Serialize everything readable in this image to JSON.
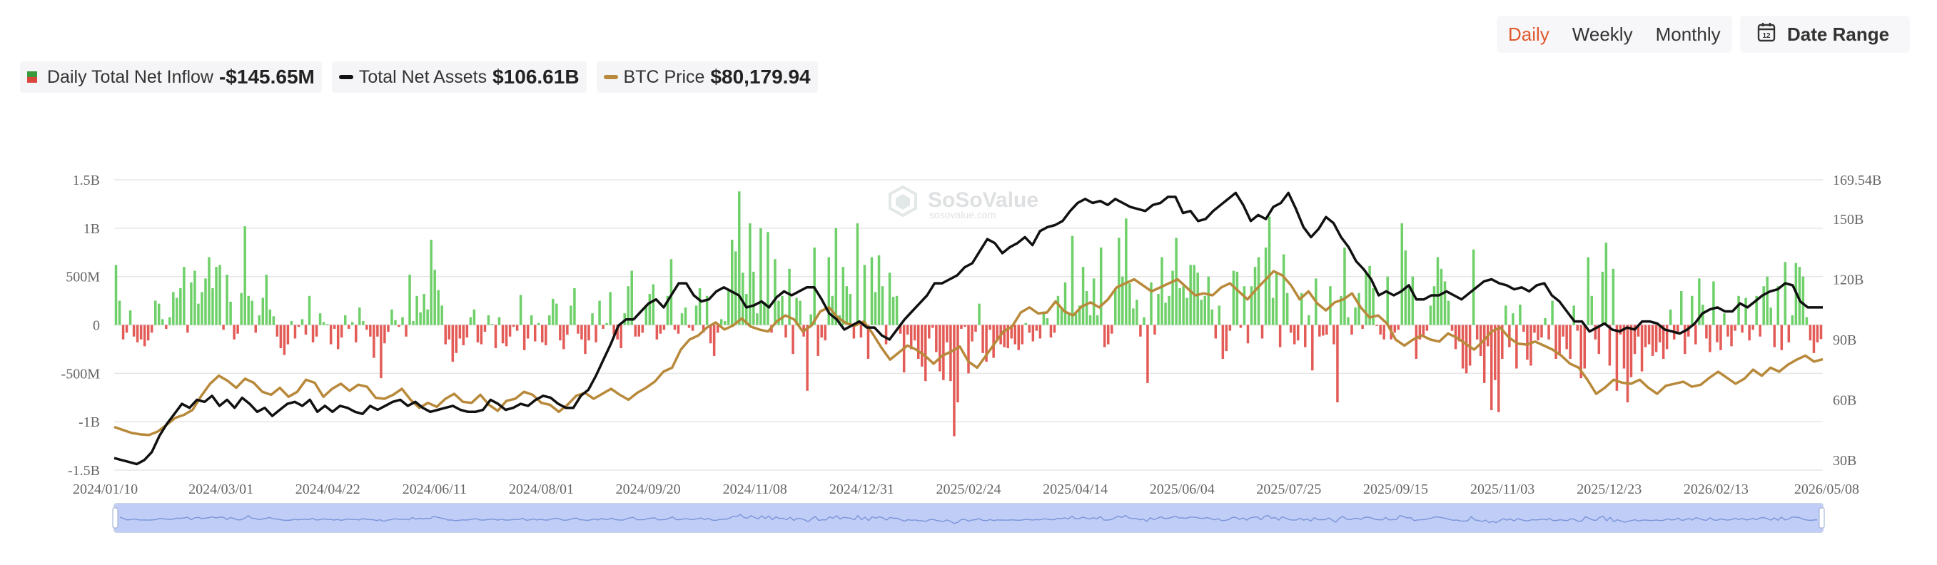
{
  "toolbar": {
    "periods": [
      "Daily",
      "Weekly",
      "Monthly"
    ],
    "active_period": "Daily",
    "date_range_label": "Date Range",
    "date_range_icon": "calendar-icon",
    "calendar_day": "12"
  },
  "legend": {
    "inflow": {
      "label": "Daily Total Net Inflow",
      "value": "-$145.65M"
    },
    "assets": {
      "label": "Total Net Assets",
      "value": "$106.61B"
    },
    "price": {
      "label": "BTC Price",
      "value": "$80,179.94"
    }
  },
  "watermark": {
    "brand": "SoSoValue",
    "url": "sosovalue.com"
  },
  "colors": {
    "inflow_positive": "#6fd06a",
    "inflow_negative": "#e35b57",
    "net_assets": "#111111",
    "btc_price": "#b8893a",
    "active_tab": "#e0582e",
    "navigator_fill": "#bfcdf7"
  },
  "chart_data": {
    "type": "bar",
    "x_ticks": [
      "2024/01/10",
      "2024/03/01",
      "2024/04/22",
      "2024/06/11",
      "2024/08/01",
      "2024/09/20",
      "2024/11/08",
      "2024/12/31",
      "2025/02/24",
      "2025/04/14",
      "2025/06/04",
      "2025/07/25",
      "2025/09/15",
      "2025/11/03",
      "2025/12/23",
      "2026/02/13",
      "2026/05/08"
    ],
    "y_left_ticks": [
      "1.5B",
      "1B",
      "500M",
      "0",
      "-500M",
      "-1B",
      "-1.5B"
    ],
    "y_left_range": [
      -1500000000,
      1500000000
    ],
    "y_right_ticks": [
      "169.54B",
      "150B",
      "120B",
      "90B",
      "60B",
      "30B"
    ],
    "y_right_range": [
      25,
      169.54
    ],
    "grid": true,
    "series": [
      {
        "name": "Daily Total Net Inflow",
        "type": "bar",
        "unit": "USD",
        "values": [
          620,
          250,
          -150,
          -80,
          150,
          -120,
          -180,
          -150,
          -220,
          -160,
          -80,
          250,
          220,
          60,
          -40,
          80,
          340,
          280,
          380,
          600,
          -80,
          440,
          560,
          220,
          340,
          480,
          700,
          380,
          600,
          620,
          -50,
          520,
          240,
          -150,
          -90,
          330,
          1020,
          300,
          250,
          -80,
          100,
          280,
          520,
          160,
          90,
          -120,
          -240,
          -310,
          -200,
          40,
          -140,
          -20,
          60,
          -100,
          300,
          -180,
          -120,
          120,
          30,
          10,
          -200,
          -40,
          -250,
          -130,
          100,
          -40,
          30,
          -180,
          180,
          40,
          -50,
          -120,
          -340,
          -120,
          -550,
          -190,
          -70,
          160,
          50,
          -20,
          80,
          -120,
          520,
          40,
          300,
          130,
          320,
          160,
          880,
          570,
          360,
          200,
          -200,
          -150,
          -380,
          -290,
          -140,
          -210,
          -130,
          80,
          160,
          -180,
          -200,
          -70,
          100,
          10,
          -240,
          80,
          -190,
          -220,
          -120,
          -20,
          -60,
          310,
          -260,
          -140,
          100,
          -170,
          20,
          -180,
          -210,
          100,
          270,
          220,
          -160,
          -250,
          -100,
          200,
          380,
          -90,
          -150,
          -300,
          -160,
          120,
          -180,
          250,
          -40,
          20,
          340,
          -100,
          -150,
          -240,
          120,
          400,
          560,
          -120,
          -120,
          -80,
          210,
          320,
          420,
          -150,
          -90,
          -50,
          300,
          680,
          -50,
          -90,
          120,
          180,
          -30,
          -60,
          200,
          380,
          -80,
          300,
          -190,
          -320,
          -80,
          60,
          40,
          360,
          880,
          760,
          1380,
          540,
          320,
          1050,
          550,
          120,
          1000,
          240,
          960,
          -80,
          680,
          250,
          300,
          -130,
          580,
          -300,
          280,
          250,
          -120,
          -680,
          110,
          800,
          -320,
          -130,
          -160,
          700,
          300,
          1000,
          100,
          600,
          400,
          320,
          -140,
          1050,
          -130,
          620,
          -350,
          700,
          340,
          720,
          400,
          -200,
          540,
          290,
          300,
          -90,
          -490,
          -100,
          -250,
          -160,
          -350,
          -430,
          -580,
          -140,
          -30,
          -280,
          -480,
          -570,
          -180,
          -580,
          -1150,
          -800,
          -40,
          -20,
          -500,
          -170,
          -70,
          220,
          -290,
          -380,
          -50,
          -340,
          -150,
          -200,
          -230,
          -240,
          -140,
          -200,
          -260,
          -200,
          20,
          -80,
          -170,
          -60,
          -140,
          140,
          70,
          -130,
          -80,
          300,
          180,
          440,
          110,
          920,
          120,
          200,
          600,
          350,
          100,
          480,
          100,
          800,
          -230,
          -200,
          -90,
          380,
          900,
          500,
          1100,
          430,
          170,
          260,
          -120,
          80,
          -600,
          440,
          -100,
          320,
          700,
          230,
          300,
          560,
          900,
          380,
          400,
          280,
          620,
          620,
          540,
          260,
          300,
          500,
          160,
          -140,
          200,
          -350,
          -270,
          -60,
          560,
          550,
          -30,
          400,
          -190,
          400,
          600,
          700,
          -140,
          800,
          1120,
          280,
          540,
          -230,
          730,
          330,
          -80,
          -200,
          -160,
          330,
          -230,
          100,
          -470,
          480,
          -120,
          -110,
          -100,
          400,
          -200,
          -800,
          300,
          800,
          80,
          -100,
          180,
          330,
          -40,
          530,
          610,
          380,
          -10,
          -100,
          -150,
          500,
          -150,
          -80,
          -50,
          1050,
          770,
          400,
          500,
          -350,
          -150,
          -120,
          -60,
          200,
          400,
          700,
          580,
          450,
          250,
          -60,
          -250,
          -170,
          -450,
          -500,
          -420,
          780,
          -150,
          -320,
          -600,
          -220,
          -880,
          -570,
          -900,
          -350,
          200,
          -230,
          120,
          -450,
          210,
          -70,
          -360,
          -420,
          -80,
          -160,
          -130,
          70,
          -150,
          250,
          -350,
          -300,
          -120,
          -250,
          -350,
          200,
          -60,
          -550,
          -450,
          700,
          300,
          -150,
          -300,
          550,
          850,
          -420,
          580,
          -680,
          -100,
          -450,
          -800,
          -540,
          -300,
          -120,
          -480,
          -230,
          -200,
          -320,
          -280,
          -180,
          -350,
          -250,
          160,
          -150,
          -80,
          350,
          -300,
          -120,
          300,
          -200,
          480,
          210,
          -140,
          -280,
          450,
          -180,
          -260,
          120,
          -120,
          -220,
          -60,
          300,
          -80,
          280,
          -160,
          -50,
          300,
          -120,
          400,
          500,
          180,
          -230,
          400,
          -260,
          650,
          -180,
          100,
          640,
          600,
          500,
          80,
          -160,
          -290,
          -180,
          -146
        ],
        "color": "#6fd06a"
      },
      {
        "name": "Total Net Assets",
        "type": "line",
        "unit": "USD B",
        "values": [
          31,
          30,
          29,
          28,
          30,
          34,
          42,
          48,
          53,
          58,
          56,
          60,
          59,
          62,
          57,
          60,
          56,
          61,
          58,
          54,
          56,
          52,
          55,
          58,
          59,
          57,
          60,
          54,
          57,
          54,
          57,
          56,
          54,
          53,
          57,
          55,
          57,
          59,
          60,
          57,
          59,
          56,
          54,
          55,
          56,
          57,
          55,
          54,
          54,
          55,
          60,
          58,
          55,
          56,
          58,
          57,
          60,
          62,
          61,
          58,
          56,
          56,
          62,
          65,
          72,
          80,
          88,
          97,
          100,
          100,
          104,
          108,
          110,
          106,
          112,
          118,
          118,
          112,
          109,
          110,
          114,
          116,
          114,
          112,
          106,
          107,
          109,
          106,
          111,
          114,
          112,
          114,
          116,
          116,
          110,
          103,
          100,
          95,
          97,
          99,
          96,
          96,
          92,
          90,
          95,
          100,
          104,
          108,
          112,
          118,
          118,
          120,
          122,
          126,
          128,
          134,
          140,
          138,
          133,
          136,
          138,
          141,
          137,
          144,
          146,
          147,
          149,
          154,
          158,
          160,
          158,
          159,
          157,
          160,
          158,
          156,
          155,
          154,
          157,
          158,
          161,
          161,
          153,
          154,
          149,
          150,
          154,
          157,
          160,
          163,
          157,
          149,
          152,
          150,
          156,
          158,
          163,
          155,
          146,
          141,
          145,
          151,
          148,
          141,
          136,
          129,
          125,
          120,
          112,
          114,
          112,
          114,
          117,
          110,
          110,
          112,
          112,
          114,
          112,
          110,
          113,
          116,
          119,
          120,
          118,
          117,
          115,
          116,
          114,
          117,
          118,
          112,
          109,
          104,
          99,
          99,
          94,
          96,
          98,
          95,
          94,
          96,
          95,
          99,
          99,
          98,
          95,
          94,
          93,
          95,
          98,
          103,
          105,
          106,
          104,
          104,
          108,
          106,
          109,
          112,
          114,
          115,
          118,
          117,
          109,
          106,
          106,
          106
        ],
        "color": "#111111"
      },
      {
        "name": "BTC Price",
        "type": "line",
        "unit": "USD",
        "values": [
          46500,
          45000,
          43500,
          42800,
          42500,
          44200,
          47500,
          51000,
          52500,
          55000,
          62000,
          68000,
          72000,
          69500,
          66000,
          70500,
          68500,
          64000,
          62500,
          66000,
          61500,
          64000,
          70000,
          68500,
          61500,
          65500,
          68000,
          64500,
          67500,
          66500,
          61000,
          60500,
          62500,
          65500,
          60000,
          56000,
          58500,
          56500,
          60500,
          63000,
          59000,
          58500,
          62500,
          57500,
          54500,
          59500,
          60500,
          64000,
          62500,
          58500,
          57500,
          54000,
          57500,
          62000,
          63500,
          60500,
          63000,
          65500,
          62500,
          60000,
          63500,
          66000,
          69000,
          74000,
          76000,
          85000,
          90000,
          92000,
          96000,
          98500,
          95000,
          97000,
          100500,
          96500,
          95000,
          94000,
          99000,
          102000,
          100000,
          94000,
          97000,
          104000,
          106000,
          101000,
          98000,
          97000,
          99000,
          93000,
          86000,
          80000,
          83500,
          87000,
          85000,
          82000,
          78000,
          82000,
          84000,
          86500,
          79000,
          76000,
          82000,
          88000,
          94000,
          96500,
          103500,
          106000,
          103000,
          103500,
          109000,
          104000,
          102000,
          106500,
          108500,
          106000,
          110000,
          116000,
          118000,
          120000,
          117000,
          114000,
          116000,
          118000,
          120000,
          116000,
          112000,
          113000,
          112000,
          116000,
          118000,
          114000,
          110000,
          115000,
          119500,
          124000,
          122000,
          117000,
          110000,
          114000,
          108000,
          104500,
          108500,
          110000,
          113000,
          106000,
          101000,
          102000,
          98000,
          90000,
          87000,
          90000,
          92000,
          90000,
          89000,
          93000,
          91000,
          88000,
          85000,
          89000,
          94000,
          96000,
          91000,
          88000,
          87500,
          89000,
          87000,
          85000,
          82000,
          78000,
          76000,
          70000,
          63000,
          66000,
          70000,
          68500,
          68000,
          70000,
          66000,
          63000,
          67000,
          68000,
          69000,
          66500,
          67500,
          71000,
          74000,
          71000,
          68000,
          70500,
          75000,
          72000,
          76000,
          74000,
          77500,
          80000,
          82000,
          79000,
          80180
        ]
      }
    ]
  }
}
